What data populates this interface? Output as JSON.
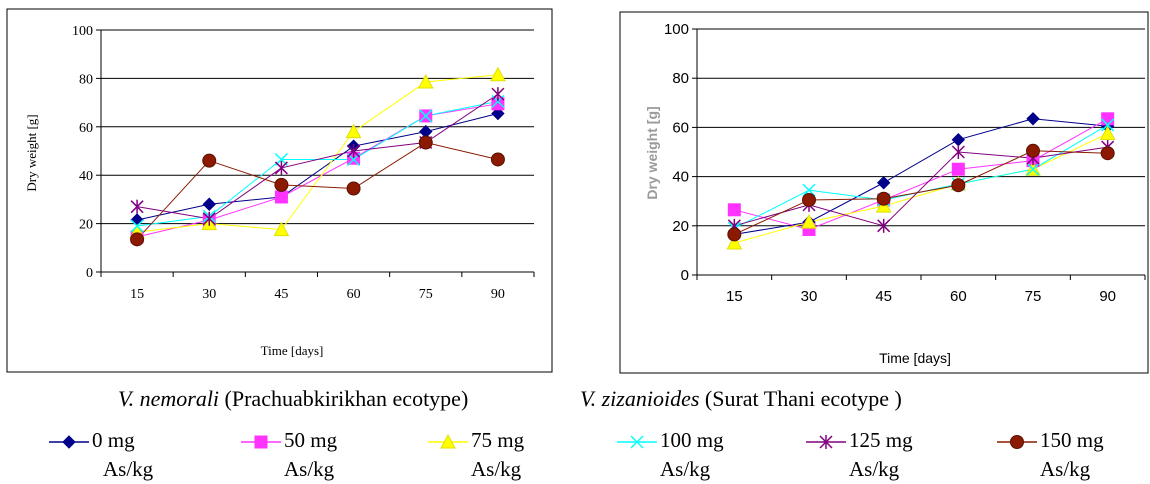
{
  "chart_data": [
    {
      "type": "line",
      "title": "",
      "xlabel": "Time   [days]",
      "ylabel": "Dry weight [g]",
      "categories": [
        "15",
        "30",
        "45",
        "60",
        "75",
        "90"
      ],
      "ylim": [
        0,
        100
      ],
      "yticks": [
        "0",
        "20",
        "40",
        "60",
        "80",
        "100"
      ],
      "grid": true,
      "series": [
        {
          "name": "0 mg As/kg",
          "values": [
            21.5,
            28,
            31,
            52,
            58,
            65.5
          ]
        },
        {
          "name": "50 mg As/kg",
          "values": [
            14.5,
            21.5,
            31,
            47,
            64.5,
            69.5
          ]
        },
        {
          "name": "75 mg As/kg",
          "values": [
            16.5,
            20,
            17.5,
            58,
            78.5,
            81.5
          ]
        },
        {
          "name": "100 mg As/kg",
          "values": [
            19,
            23,
            46.5,
            46.5,
            64.5,
            70.5
          ]
        },
        {
          "name": "125 mg As/kg",
          "values": [
            27,
            22,
            43,
            50,
            53.5,
            73.5
          ]
        },
        {
          "name": "150 mg As/kg",
          "values": [
            13.5,
            46,
            36,
            34.5,
            53.5,
            46.5
          ]
        }
      ]
    },
    {
      "type": "line",
      "title": "",
      "xlabel": "Time [days]",
      "ylabel": "Dry weight [g]",
      "categories": [
        "15",
        "30",
        "45",
        "60",
        "75",
        "90"
      ],
      "ylim": [
        0,
        100
      ],
      "yticks": [
        "0",
        "20",
        "40",
        "60",
        "80",
        "100"
      ],
      "grid": true,
      "series": [
        {
          "name": "0 mg As/kg",
          "values": [
            16.5,
            21.5,
            37.5,
            55,
            63.5,
            60.5
          ]
        },
        {
          "name": "50 mg As/kg",
          "values": [
            26.5,
            18.5,
            30.5,
            43,
            46.5,
            63.5
          ]
        },
        {
          "name": "75 mg As/kg",
          "values": [
            13,
            21.5,
            28,
            37,
            43,
            57.5
          ]
        },
        {
          "name": "100 mg As/kg",
          "values": [
            19,
            34.5,
            30.5,
            37,
            43,
            61
          ]
        },
        {
          "name": "125 mg As/kg",
          "values": [
            20,
            28.5,
            20,
            50,
            47.5,
            52
          ]
        },
        {
          "name": "150 mg As/kg",
          "values": [
            16.5,
            30.5,
            31,
            36.5,
            50.5,
            49.5
          ]
        }
      ]
    }
  ],
  "captions": {
    "left": {
      "species": "V. nemorali",
      "rest": " (Prachuabkirikhan ecotype)"
    },
    "right": {
      "species": "V. zizanioides",
      "rest": " (Surat Thani ecotype )"
    }
  },
  "legend": [
    {
      "line1": "0 mg",
      "line2": "As/kg",
      "color": "#00008B",
      "marker": "diamond"
    },
    {
      "line1": "50 mg",
      "line2": "As/kg",
      "color": "#FF33FF",
      "marker": "square"
    },
    {
      "line1": "75 mg",
      "line2": "As/kg",
      "color": "#FFFF00",
      "marker": "triangle"
    },
    {
      "line1": "100 mg",
      "line2": "As/kg",
      "color": "#00FFFF",
      "marker": "x"
    },
    {
      "line1": "125 mg",
      "line2": "As/kg",
      "color": "#800080",
      "marker": "asterisk"
    },
    {
      "line1": "150 mg",
      "line2": "As/kg",
      "color": "#8B1A00",
      "marker": "circle"
    }
  ],
  "series_styles": [
    {
      "color": "#00008B",
      "marker": "diamond"
    },
    {
      "color": "#FF33FF",
      "marker": "square"
    },
    {
      "color": "#FFFF00",
      "marker": "triangle"
    },
    {
      "color": "#00FFFF",
      "marker": "x"
    },
    {
      "color": "#800080",
      "marker": "asterisk"
    },
    {
      "color": "#8B1A00",
      "marker": "circle"
    }
  ]
}
